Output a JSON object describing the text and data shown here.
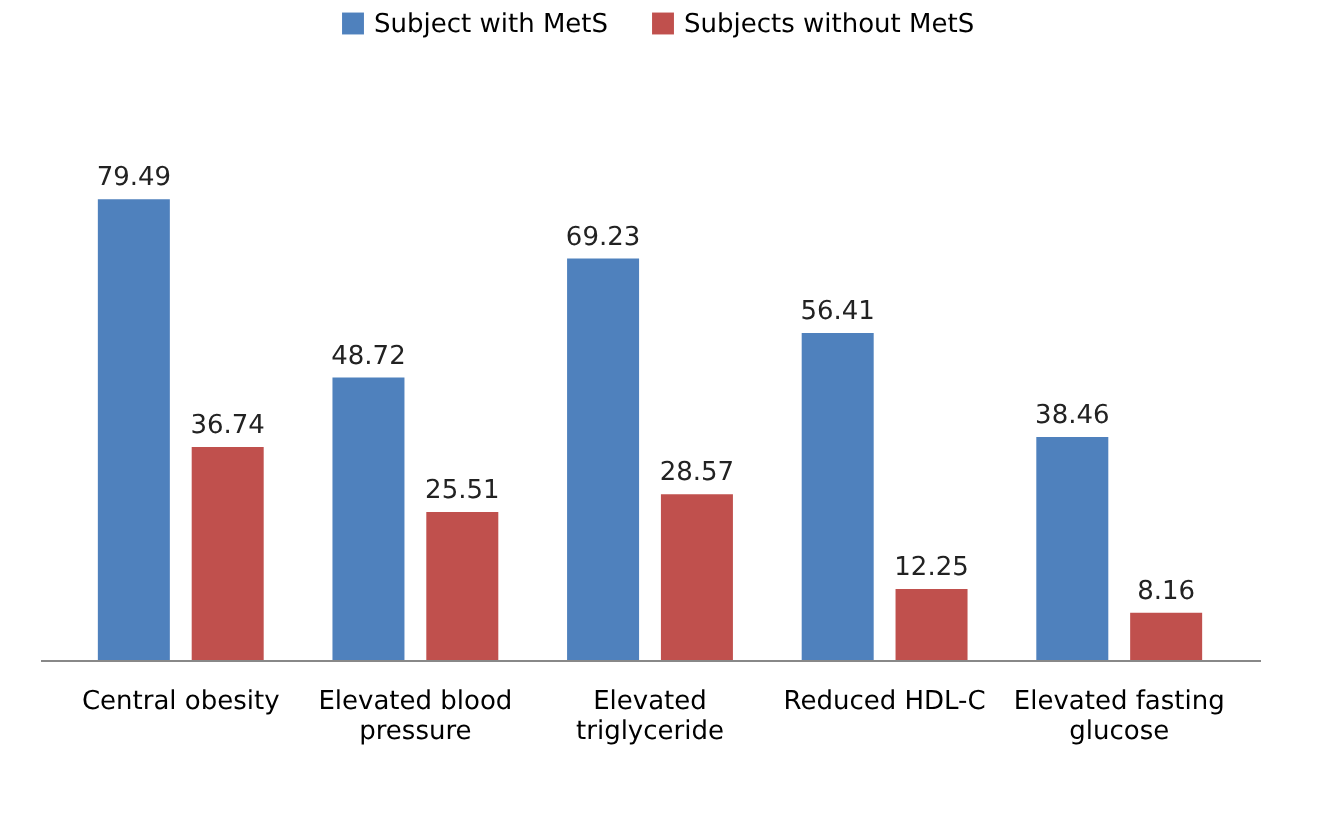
{
  "chart_data": {
    "type": "bar",
    "categories": [
      "Central obesity",
      "Elevated blood pressure",
      "Elevated triglyceride",
      "Reduced HDL-C",
      "Elevated fasting glucose"
    ],
    "series": [
      {
        "name": "Subject with MetS",
        "color": "#4f81bd",
        "values": [
          79.49,
          48.72,
          69.23,
          56.41,
          38.46
        ]
      },
      {
        "name": "Subjects without MetS",
        "color": "#c0504d",
        "values": [
          36.74,
          25.51,
          28.57,
          12.25,
          8.16
        ]
      }
    ],
    "data_labels": true,
    "legend": "top"
  }
}
